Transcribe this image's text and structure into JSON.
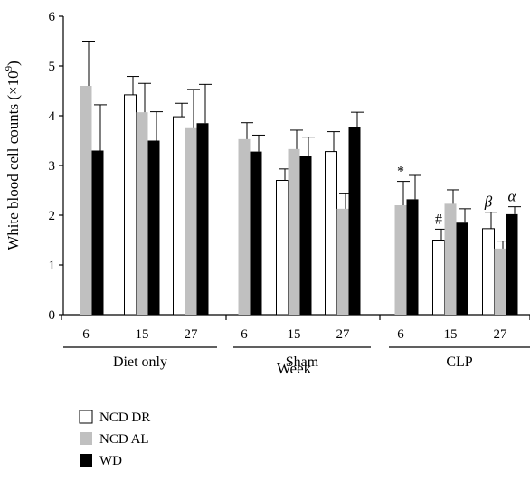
{
  "chart_data": {
    "type": "bar",
    "ylabel": "White blood cell counts (×10",
    "ylabel_sup": "9",
    "ylabel_close": ")",
    "xlabel": "Week",
    "ylim": [
      0,
      6
    ],
    "yticks": [
      "0",
      "1",
      "2",
      "3",
      "4",
      "5",
      "6"
    ],
    "groups": [
      "Diet only",
      "Sham",
      "CLP"
    ],
    "weeks": [
      "6",
      "15",
      "27"
    ],
    "series": [
      {
        "name": "NCD DR",
        "color": "#ffffff",
        "values": [
          null,
          4.42,
          3.98,
          null,
          2.7,
          3.28,
          null,
          1.5,
          1.73
        ],
        "errors": [
          null,
          0.37,
          0.27,
          null,
          0.23,
          0.4,
          null,
          0.22,
          0.33
        ]
      },
      {
        "name": "NCD AL",
        "color": "#c0c0c0",
        "values": [
          4.6,
          4.07,
          3.75,
          3.53,
          3.33,
          2.13,
          2.2,
          2.23,
          1.33
        ],
        "errors": [
          0.9,
          0.58,
          0.78,
          0.33,
          0.38,
          0.3,
          0.48,
          0.28,
          0.15
        ]
      },
      {
        "name": "WD",
        "color": "#000000",
        "values": [
          3.3,
          3.5,
          3.85,
          3.28,
          3.2,
          3.77,
          2.32,
          1.85,
          2.02
        ],
        "errors": [
          0.92,
          0.58,
          0.78,
          0.33,
          0.37,
          0.3,
          0.48,
          0.28,
          0.15
        ]
      }
    ],
    "annotations": [
      {
        "text": "*",
        "category": 6,
        "series": 1
      },
      {
        "text": "#",
        "category": 7,
        "series": 0
      },
      {
        "text": "β",
        "category": 8,
        "series": 0
      },
      {
        "text": "α",
        "category": 8,
        "series": 2
      }
    ],
    "legend": [
      "NCD DR",
      "NCD AL",
      "WD"
    ],
    "legend_position": "bottom-left"
  }
}
